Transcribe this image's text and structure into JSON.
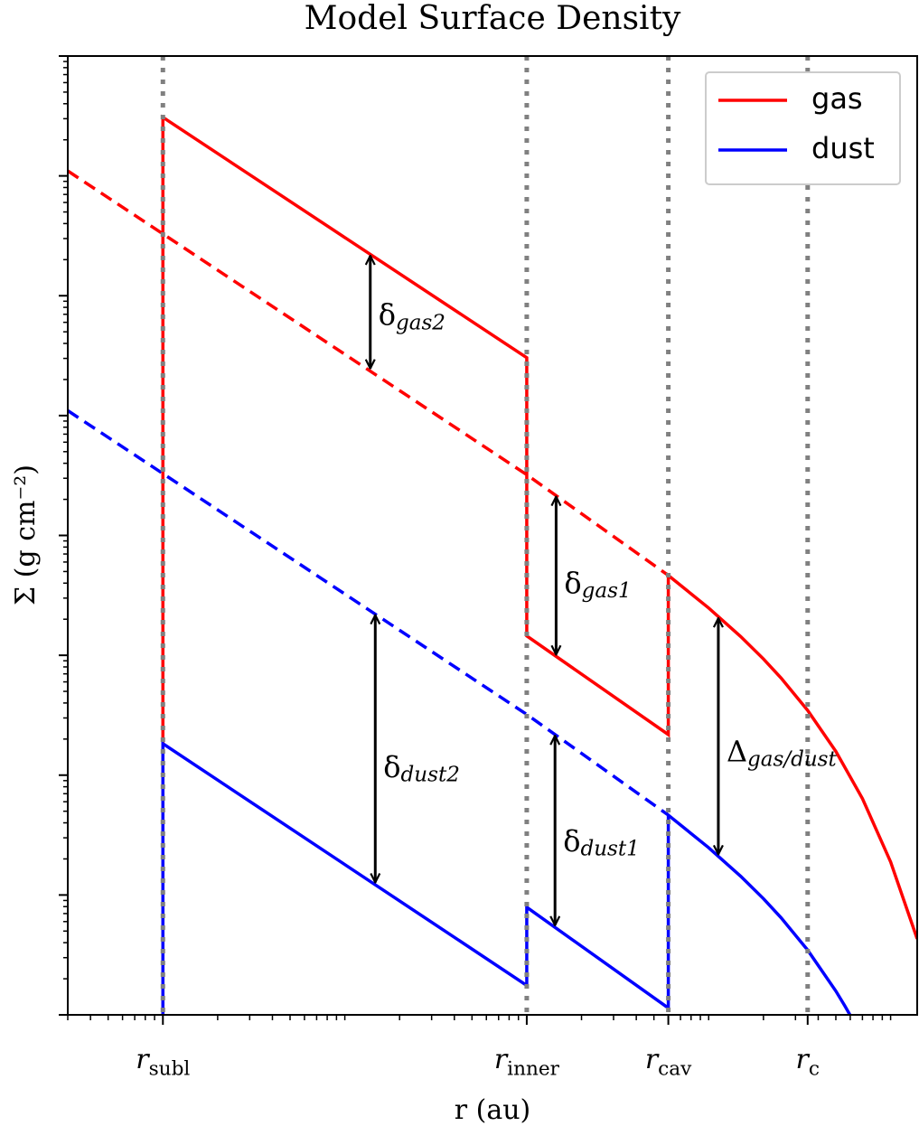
{
  "chart_data": {
    "type": "line",
    "title": "Model Surface Density",
    "x_label": "r (au)",
    "y_label": "Σ (g cm⁻²)",
    "xscale": "log",
    "yscale": "log",
    "xlim": [
      0.03,
      1400
    ],
    "ylim": [
      1e-05,
      1000
    ],
    "xticks": [
      {
        "value": 0.1,
        "label": "r_subl"
      },
      {
        "value": 10,
        "label": "r_inner"
      },
      {
        "value": 60,
        "label": "r_cav"
      },
      {
        "value": 350,
        "label": "r_c"
      }
    ],
    "reference_lines": true,
    "legend": "upper right",
    "series": [
      {
        "name": "gas",
        "color": "#ff0000",
        "linestyle": "solid",
        "x": [
          0.1,
          0.1,
          10,
          10,
          60,
          60,
          100,
          150,
          200,
          250,
          350,
          500,
          700,
          1000,
          1400
        ],
        "values": [
          1e-05,
          308,
          3.04,
          0.0145,
          0.00218,
          0.0464,
          0.0248,
          0.01433,
          0.00932,
          0.00646,
          0.00347,
          0.00158,
          0.000638,
          0.000189,
          4.3e-05
        ]
      },
      {
        "color": "#ff0000",
        "linestyle": "dashed",
        "x": [
          0.03,
          10,
          60
        ],
        "values": [
          110,
          0.321,
          0.0464
        ]
      },
      {
        "name": "dust",
        "color": "#0000ff",
        "linestyle": "solid",
        "x": [
          0.1,
          0.1,
          10,
          10,
          60,
          60,
          100,
          150,
          200,
          250,
          350,
          500,
          560,
          600
        ],
        "values": [
          1e-05,
          0.00183,
          1.76e-05,
          7.9e-05,
          1.14e-05,
          0.000464,
          0.000248,
          0.0001433,
          9.32e-05,
          6.46e-05,
          3.47e-05,
          1.58e-05,
          1.19e-05,
          9.9e-06
        ]
      },
      {
        "color": "#0000ff",
        "linestyle": "dashed",
        "x": [
          0.03,
          10,
          60
        ],
        "values": [
          1.1,
          0.00321,
          0.000464
        ]
      }
    ],
    "annotations": [
      {
        "text": "δ_gas2",
        "x": 1.38,
        "y": [
          22.3,
          2.39
        ]
      },
      {
        "text": "δ_gas1",
        "x": 14.5,
        "y": [
          0.218,
          0.0098
        ]
      },
      {
        "text": "δ_dust2",
        "x": 1.47,
        "y": [
          0.0224,
          0.000123
        ]
      },
      {
        "text": "δ_dust1",
        "x": 14.3,
        "y": [
          0.00221,
          5.4e-05
        ]
      },
      {
        "text": "Δ_gas/dust",
        "x": 113,
        "y": [
          0.0211,
          0.000211
        ]
      }
    ]
  }
}
